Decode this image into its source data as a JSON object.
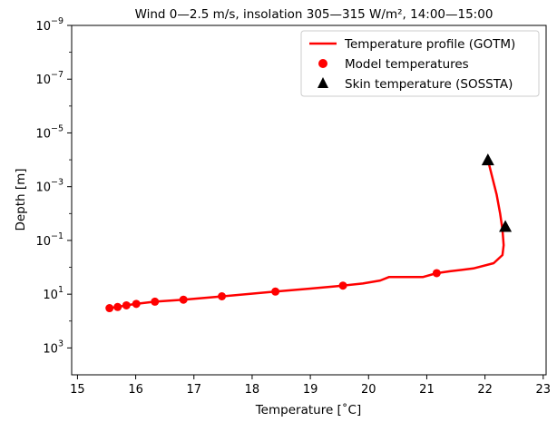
{
  "chart_data": {
    "type": "line",
    "title": "Wind 0—2.5 m/s, insolation 305—315 W/m², 14:00—15:00",
    "xlabel": "Temperature [˚C]",
    "ylabel": "Depth [m]",
    "xlim": [
      14.9,
      23.05
    ],
    "ylim": [
      1e-09,
      10000
    ],
    "y_scale": "log",
    "y_inverted": true,
    "x_ticks": [
      "15",
      "16",
      "17",
      "18",
      "19",
      "20",
      "21",
      "22",
      "23"
    ],
    "y_ticks": [
      {
        "base": "10",
        "exp": "−9"
      },
      {
        "base": "10",
        "exp": "−7"
      },
      {
        "base": "10",
        "exp": "−5"
      },
      {
        "base": "10",
        "exp": "−3"
      },
      {
        "base": "10",
        "exp": "−1"
      },
      {
        "base": "10",
        "exp": "1"
      },
      {
        "base": "10",
        "exp": "3"
      }
    ],
    "legend_position": "top-right",
    "series": [
      {
        "name": "Temperature profile (GOTM)",
        "kind": "line",
        "color": "#ff0000",
        "points": [
          [
            22.05,
            0.0001
          ],
          [
            22.12,
            0.0004
          ],
          [
            22.2,
            0.002
          ],
          [
            22.26,
            0.01
          ],
          [
            22.3,
            0.04
          ],
          [
            22.32,
            0.15
          ],
          [
            22.3,
            0.35
          ],
          [
            22.15,
            0.7
          ],
          [
            21.8,
            1.1
          ],
          [
            21.4,
            1.4
          ],
          [
            21.17,
            1.65
          ],
          [
            20.93,
            2.3
          ],
          [
            20.35,
            2.3
          ],
          [
            20.2,
            3.1
          ],
          [
            19.9,
            4.0
          ],
          [
            19.56,
            4.8
          ],
          [
            19.0,
            6.2
          ],
          [
            18.4,
            8.0
          ],
          [
            17.5,
            12.0
          ],
          [
            16.82,
            16.0
          ],
          [
            16.33,
            19.0
          ],
          [
            16.0,
            23.0
          ],
          [
            15.84,
            26.0
          ],
          [
            15.69,
            30.0
          ],
          [
            15.55,
            33.0
          ]
        ]
      },
      {
        "name": "Model temperatures",
        "kind": "points",
        "color": "#ff0000",
        "points": [
          [
            21.17,
            1.65
          ],
          [
            19.56,
            4.8
          ],
          [
            18.4,
            8.0
          ],
          [
            17.48,
            12.0
          ],
          [
            16.82,
            16.0
          ],
          [
            16.33,
            19.0
          ],
          [
            16.01,
            23.0
          ],
          [
            15.84,
            26.0
          ],
          [
            15.69,
            30.0
          ],
          [
            15.55,
            33.0
          ]
        ]
      },
      {
        "name": "Skin temperature (SOSSTA)",
        "kind": "markers",
        "color": "#000000",
        "points": [
          [
            22.05,
            0.0001
          ],
          [
            22.35,
            0.03
          ]
        ]
      }
    ]
  }
}
